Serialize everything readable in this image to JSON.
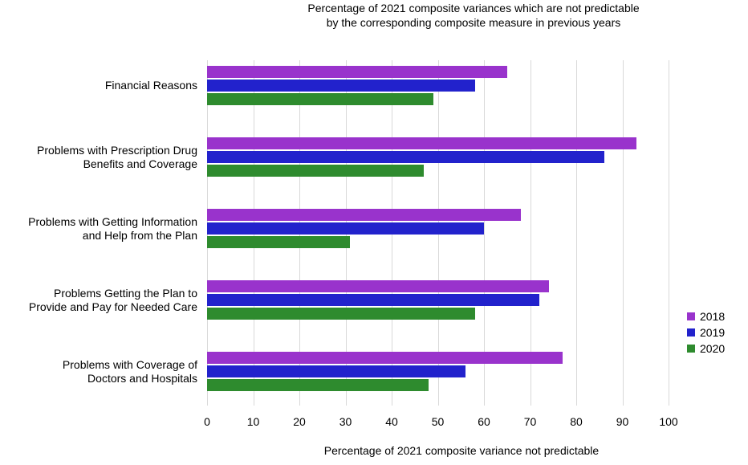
{
  "chart_data": {
    "type": "bar",
    "orientation": "horizontal",
    "title": "Percentage of 2021 composite variances which are not predictable\nby the corresponding composite measure in previous years",
    "xlabel": "Percentage of 2021 composite variance not predictable",
    "xlim": [
      0,
      100
    ],
    "xticks": [
      0,
      10,
      20,
      30,
      40,
      50,
      60,
      70,
      80,
      90,
      100
    ],
    "grid": true,
    "legend_position": "right",
    "gridline_color": "#d9d9d9",
    "categories": [
      "Financial Reasons",
      "Problems with Prescription Drug\nBenefits and Coverage",
      "Problems with Getting Information\nand Help from the Plan",
      "Problems Getting the Plan to\nProvide and Pay for Needed Care",
      "Problems with Coverage of\nDoctors and Hospitals"
    ],
    "series": [
      {
        "name": "2018",
        "color": "#9933cc",
        "values": [
          65,
          93,
          68,
          74,
          77
        ]
      },
      {
        "name": "2019",
        "color": "#2222cc",
        "values": [
          58,
          86,
          60,
          72,
          56
        ]
      },
      {
        "name": "2020",
        "color": "#2e8b2e",
        "values": [
          49,
          47,
          31,
          58,
          48
        ]
      }
    ]
  }
}
